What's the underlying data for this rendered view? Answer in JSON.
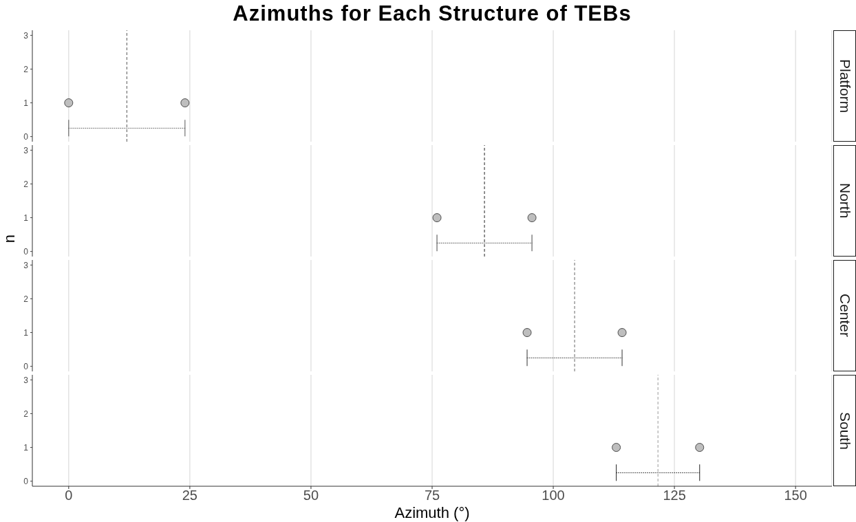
{
  "chart_data": [
    {
      "type": "scatter",
      "title": "Azimuths for Each Structure of TEBs",
      "y2label": "Platform",
      "series": [
        {
          "x": [
            0,
            24
          ],
          "values": [
            1,
            1
          ],
          "color": "#bebebe"
        },
        {
          "type": "line",
          "x": [
            0,
            24
          ],
          "values": [
            0.25,
            0.25
          ],
          "marker": "none",
          "line_style": "dotted",
          "color": "#666666"
        }
      ],
      "ref_lines": [
        {
          "axis": "x",
          "value": 12,
          "color": "#555555",
          "line_style": "dashed"
        }
      ],
      "xlim": [
        -7.5,
        157.5
      ],
      "xticks": [
        0,
        25,
        50,
        75,
        100,
        125,
        150
      ],
      "ylim": [
        -0.15,
        3.15
      ],
      "yticks": [
        0,
        1,
        2,
        3
      ],
      "grid": "x",
      "marker": "circle",
      "tick_labels": "y"
    },
    {
      "type": "scatter",
      "y2label": "North",
      "ylabel": "n",
      "series": [
        {
          "x": [
            76,
            95.6
          ],
          "values": [
            1,
            1
          ],
          "color": "#bebebe"
        },
        {
          "type": "line",
          "x": [
            76,
            95.6
          ],
          "values": [
            0.25,
            0.25
          ],
          "marker": "none",
          "line_style": "dotted",
          "color": "#555555"
        }
      ],
      "ref_lines": [
        {
          "axis": "x",
          "value": 85.8,
          "color": "#222222",
          "line_style": "dashed"
        }
      ],
      "xlim": [
        -7.5,
        157.5
      ],
      "xticks": [
        0,
        25,
        50,
        75,
        100,
        125,
        150
      ],
      "ylim": [
        -0.15,
        3.15
      ],
      "yticks": [
        0,
        1,
        2,
        3
      ],
      "grid": "x",
      "marker": "circle",
      "tick_labels": "y"
    },
    {
      "type": "scatter",
      "y2label": "Center",
      "series": [
        {
          "x": [
            94.6,
            114.2
          ],
          "values": [
            1,
            1
          ],
          "color": "#bebebe"
        },
        {
          "type": "line",
          "x": [
            94.6,
            114.2
          ],
          "values": [
            0.25,
            0.25
          ],
          "marker": "none",
          "line_style": "dotted",
          "color": "#444444"
        }
      ],
      "ref_lines": [
        {
          "axis": "x",
          "value": 104.4,
          "color": "#666666",
          "line_style": "dashed"
        }
      ],
      "xlim": [
        -7.5,
        157.5
      ],
      "xticks": [
        0,
        25,
        50,
        75,
        100,
        125,
        150
      ],
      "ylim": [
        -0.15,
        3.15
      ],
      "yticks": [
        0,
        1,
        2,
        3
      ],
      "grid": "x",
      "marker": "circle",
      "tick_labels": "y"
    },
    {
      "type": "scatter",
      "y2label": "South",
      "xlabel": "Azimuth (°)",
      "series": [
        {
          "x": [
            113,
            130.2
          ],
          "values": [
            1,
            1
          ],
          "color": "#bebebe"
        },
        {
          "type": "line",
          "x": [
            113,
            130.2
          ],
          "values": [
            0.25,
            0.25
          ],
          "marker": "none",
          "line_style": "dotted",
          "color": "#333333"
        }
      ],
      "ref_lines": [
        {
          "axis": "x",
          "value": 121.6,
          "color": "#999999",
          "line_style": "dashed"
        }
      ],
      "xlim": [
        -7.5,
        157.5
      ],
      "xticks": [
        0,
        25,
        50,
        75,
        100,
        125,
        150
      ],
      "ylim": [
        -0.15,
        3.15
      ],
      "yticks": [
        0,
        1,
        2,
        3
      ],
      "grid": "x",
      "marker": "circle"
    }
  ]
}
